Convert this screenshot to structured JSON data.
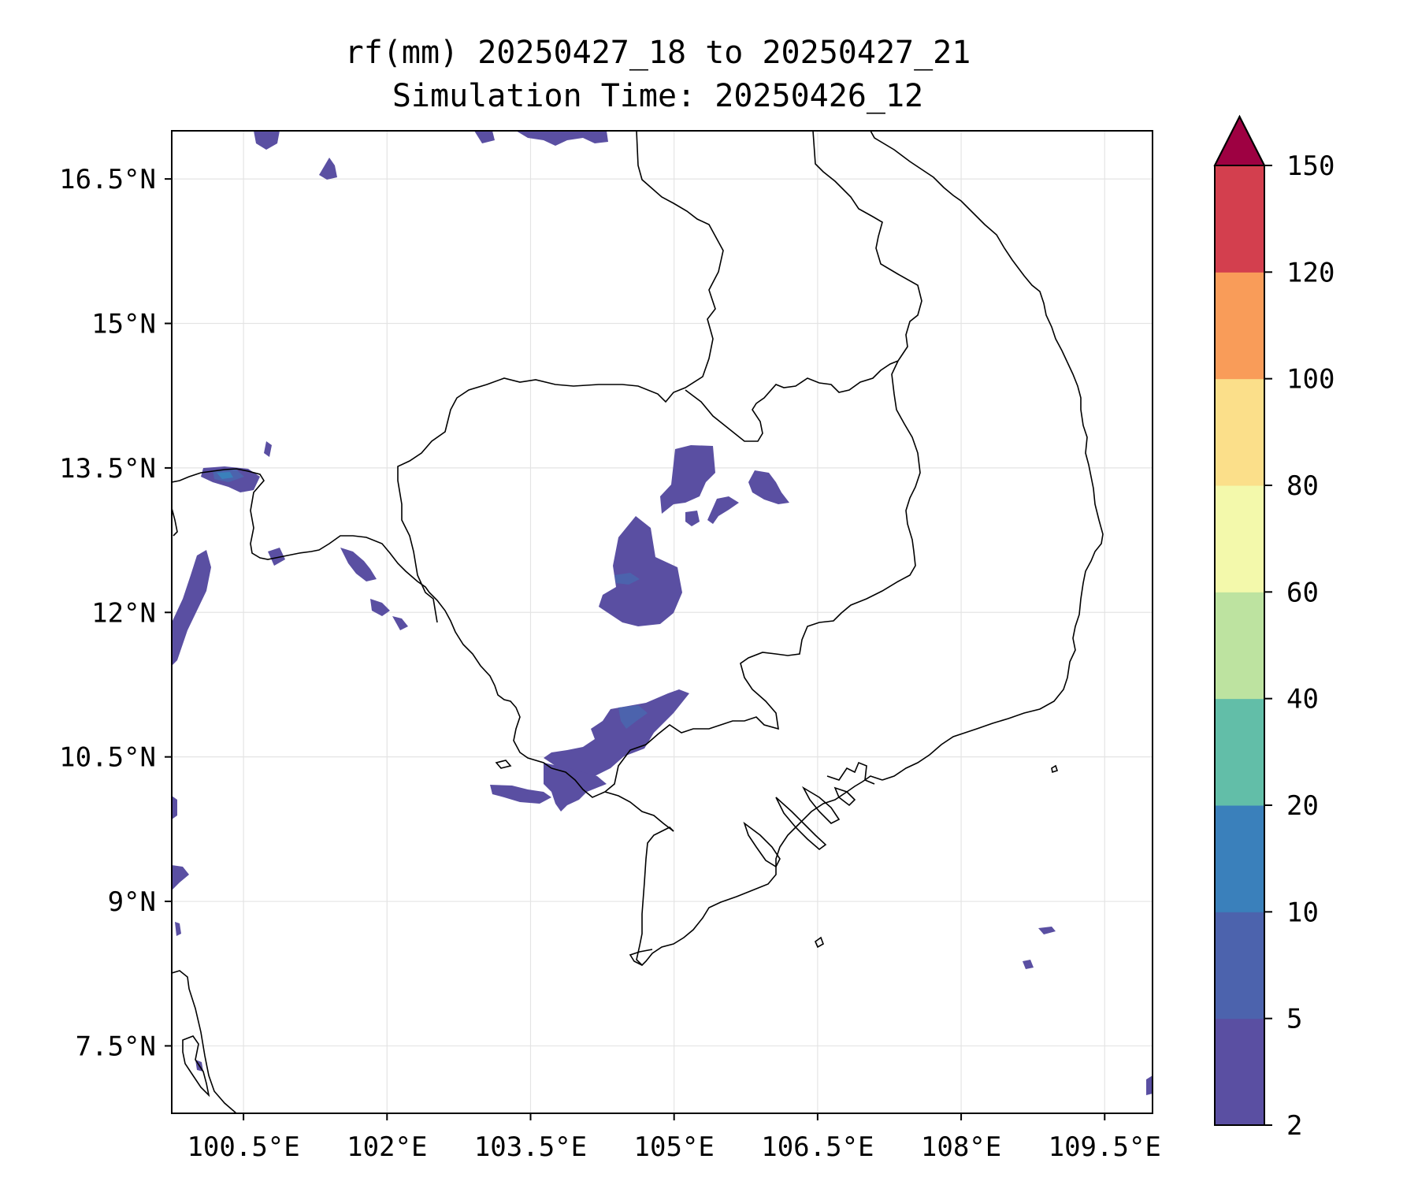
{
  "chart_data": {
    "type": "contour-map",
    "title": "rf(mm) 20250427_18 to 20250427_21",
    "subtitle": "Simulation Time: 20250426_12",
    "xlabel": "",
    "ylabel": "",
    "lon_range": [
      99.75,
      110.0
    ],
    "lat_range": [
      6.8,
      17.0
    ],
    "x_ticks": [
      {
        "value": 100.5,
        "label": "100.5°E"
      },
      {
        "value": 102.0,
        "label": "102°E"
      },
      {
        "value": 103.5,
        "label": "103.5°E"
      },
      {
        "value": 105.0,
        "label": "105°E"
      },
      {
        "value": 106.5,
        "label": "106.5°E"
      },
      {
        "value": 108.0,
        "label": "108°E"
      },
      {
        "value": 109.5,
        "label": "109.5°E"
      }
    ],
    "y_ticks": [
      {
        "value": 16.5,
        "label": "16.5°N"
      },
      {
        "value": 15.0,
        "label": "15°N"
      },
      {
        "value": 13.5,
        "label": "13.5°N"
      },
      {
        "value": 12.0,
        "label": "12°N"
      },
      {
        "value": 10.5,
        "label": "10.5°N"
      },
      {
        "value": 9.0,
        "label": "9°N"
      },
      {
        "value": 7.5,
        "label": "7.5°N"
      }
    ],
    "grid": true,
    "colorbar": {
      "levels": [
        2,
        5,
        10,
        20,
        40,
        60,
        80,
        100,
        120,
        150
      ],
      "labels": [
        "2",
        "5",
        "10",
        "20",
        "40",
        "60",
        "80",
        "100",
        "120",
        "150"
      ],
      "colors": [
        "#5a4fa2",
        "#4c63ad",
        "#3a80bb",
        "#62bea8",
        "#bde3a0",
        "#f3f9ab",
        "#fbdf8a",
        "#f99c59",
        "#d33f4e"
      ],
      "extend_color": "#9e0142"
    },
    "colormap": "Spectral_r"
  }
}
